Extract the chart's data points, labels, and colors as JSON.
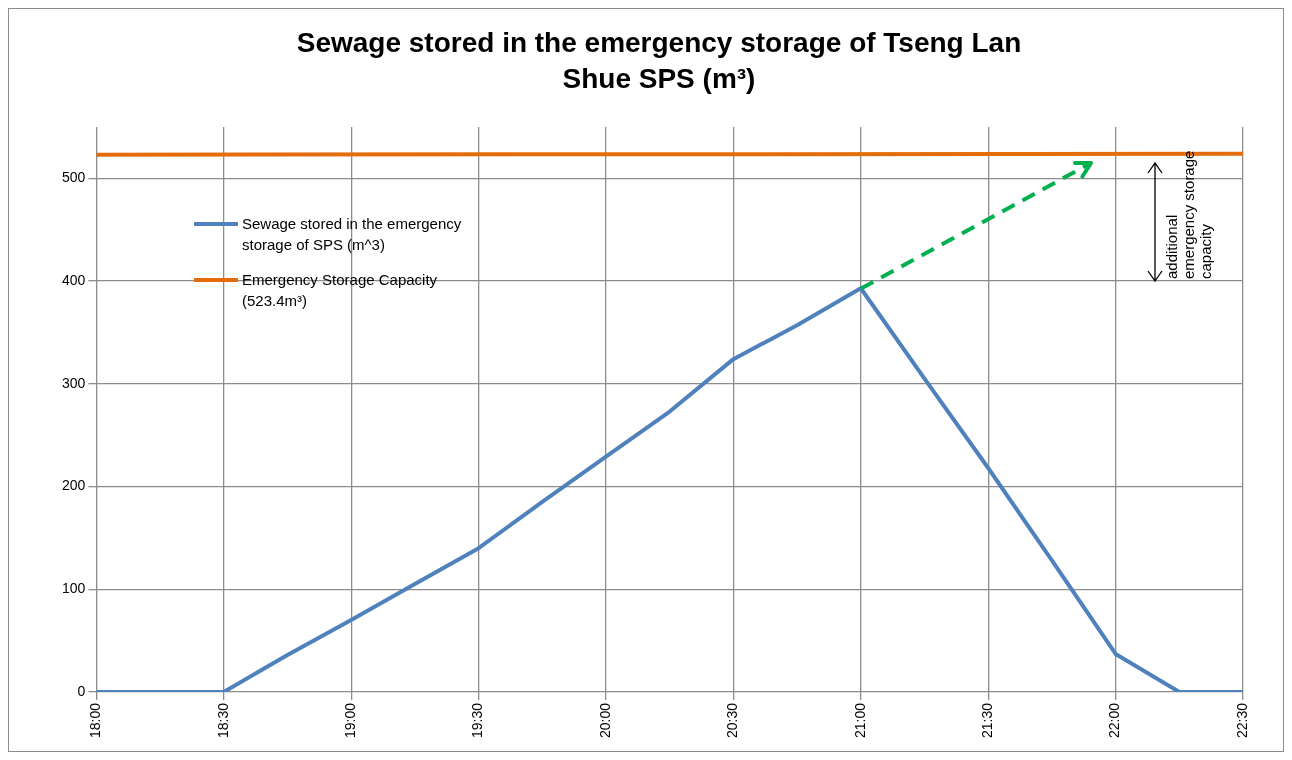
{
  "chart_data": {
    "type": "line",
    "title": "Sewage stored in the emergency storage of Tseng Lan Shue SPS (m³)",
    "series": [
      {
        "name": "Sewage stored in the emergency storage of SPS (m^3)",
        "color": "#4f81bd",
        "x": [
          18,
          18.25,
          18.5,
          18.75,
          19,
          19.25,
          19.5,
          19.75,
          20,
          20.25,
          20.5,
          20.75,
          21,
          21.25,
          21.5,
          21.75,
          22,
          22.25,
          22.5
        ],
        "values": [
          0,
          0,
          0,
          36,
          70,
          105,
          140,
          185,
          229,
          273,
          324,
          357,
          393,
          305,
          218,
          128,
          37,
          0,
          0
        ]
      },
      {
        "name": "Emergency Storage Capacity (523.4m³)",
        "color": "#e46c0a",
        "x": [
          18,
          22.5
        ],
        "values": [
          523,
          524
        ]
      }
    ],
    "xlim": [
      18,
      22.5
    ],
    "xticks": [
      {
        "value": 18,
        "label": "18:00"
      },
      {
        "value": 18.5,
        "label": "18:30"
      },
      {
        "value": 19,
        "label": "19:00"
      },
      {
        "value": 19.5,
        "label": "19:30"
      },
      {
        "value": 20,
        "label": "20:00"
      },
      {
        "value": 20.5,
        "label": "20:30"
      },
      {
        "value": 21,
        "label": "21:00"
      },
      {
        "value": 21.5,
        "label": "21:30"
      },
      {
        "value": 22,
        "label": "22:00"
      },
      {
        "value": 22.5,
        "label": "22:30"
      }
    ],
    "ylim": [
      0,
      550
    ],
    "yticks": [
      0,
      100,
      200,
      300,
      400,
      500
    ],
    "grid": true,
    "legend": "top left",
    "marker": "none",
    "line_style": "solid",
    "annotations": [
      "additional emergency storage capacity"
    ]
  }
}
